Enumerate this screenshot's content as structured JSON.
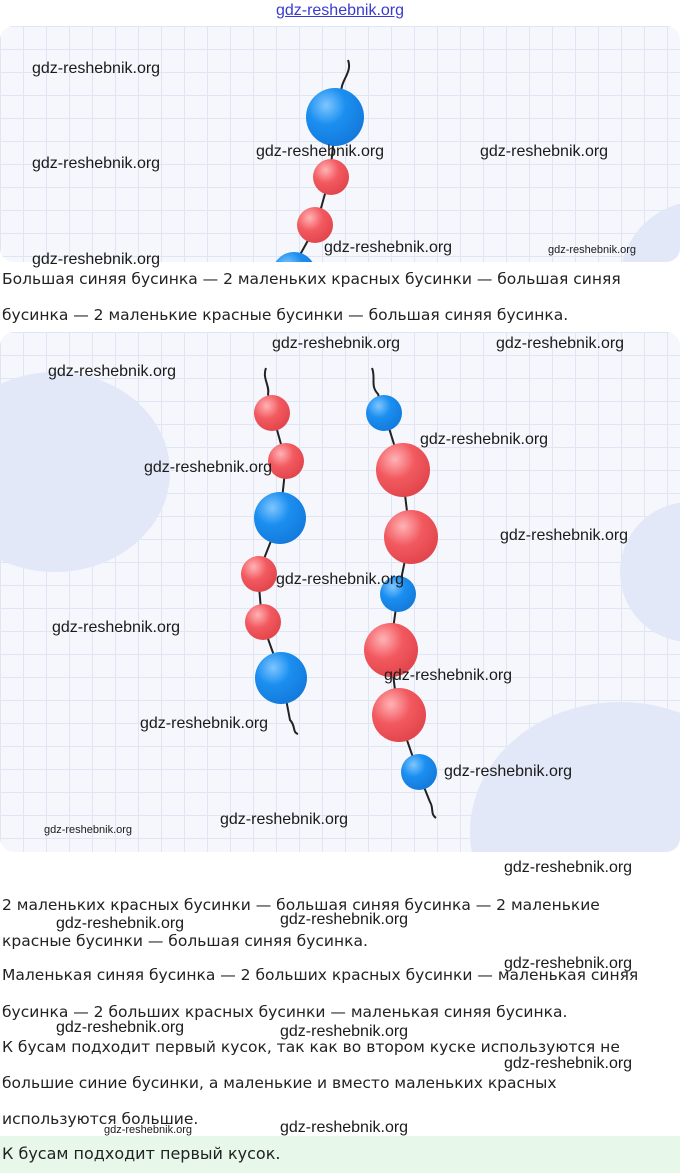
{
  "header": {
    "site_link": "gdz-reshebnik.org"
  },
  "watermark": "gdz-reshebnik.org",
  "colors": {
    "blue_bead": "#1b8ff0",
    "red_bead": "#f25a60",
    "answer_bg": "#e7f7ea",
    "grid": "#dfe5f2"
  },
  "paragraphs": {
    "p1_line1": "Большая синяя бусинка — 2 маленьких красных бусинки — большая синяя",
    "p1_line2": "бусинка — 2 маленькие красные бусинки — большая синяя бусинка.",
    "p2_line1": "2 маленьких красных бусинки — большая синяя бусинка — 2 маленькие",
    "p2_line2": "красные бусинки — большая синяя бусинка.",
    "p3_line1": "Маленькая синяя бусинка — 2 больших красных бусинки — маленькая синяя",
    "p3_line2": "бусинка — 2 больших красных бусинки — маленькая синяя бусинка.",
    "p4_line1": "К бусам подходит первый кусок, так как во втором куске используются не",
    "p4_line2": "большие синие бусинки, а маленькие и вместо маленьких красных",
    "p4_line3": "используются большие."
  },
  "answer": "К бусам подходит первый кусок."
}
